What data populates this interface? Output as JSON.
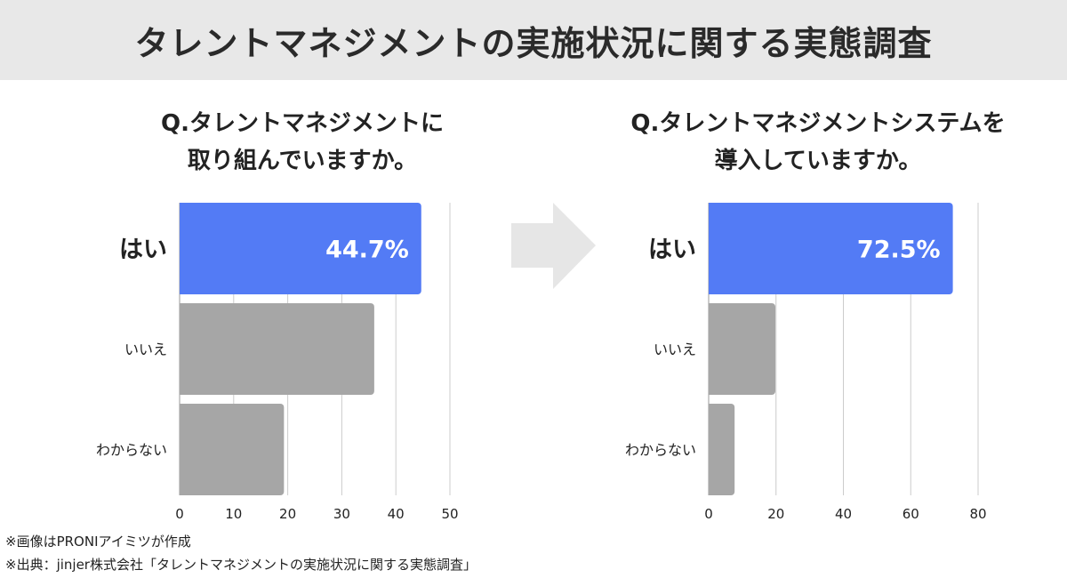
{
  "title": "タレントマネジメントの実施状況に関する実態調査",
  "footer": {
    "note1": "※画像はPRONIアイミツが作成",
    "note2": "※出典：jinjer株式会社「タレントマネジメントの実施状況に関する実態調査」"
  },
  "colors": {
    "highlight": "#537bf5",
    "other": "#a6a6a6",
    "grid": "#cccccc",
    "header_bg": "#e8e8e8",
    "arrow": "#e6e6e6"
  },
  "chart_data": [
    {
      "type": "bar",
      "orientation": "horizontal",
      "title_line1": "Q.タレントマネジメントに",
      "title_line2": "取り組んでいますか。",
      "categories": [
        "はい",
        "いいえ",
        "わからない"
      ],
      "values": [
        44.7,
        36.0,
        19.3
      ],
      "data_labels": [
        "44.7%",
        "",
        ""
      ],
      "xlim": [
        0,
        50
      ],
      "xticks": [
        "0",
        "10",
        "20",
        "30",
        "40",
        "50"
      ],
      "grid": true
    },
    {
      "type": "bar",
      "orientation": "horizontal",
      "title_line1": "Q.タレントマネジメントシステムを",
      "title_line2": "導入していますか。",
      "categories": [
        "はい",
        "いいえ",
        "わからない"
      ],
      "values": [
        72.5,
        19.8,
        7.7
      ],
      "data_labels": [
        "72.5%",
        "",
        ""
      ],
      "xlim": [
        0,
        80
      ],
      "xticks": [
        "0",
        "20",
        "40",
        "60",
        "80"
      ],
      "grid": true
    }
  ]
}
